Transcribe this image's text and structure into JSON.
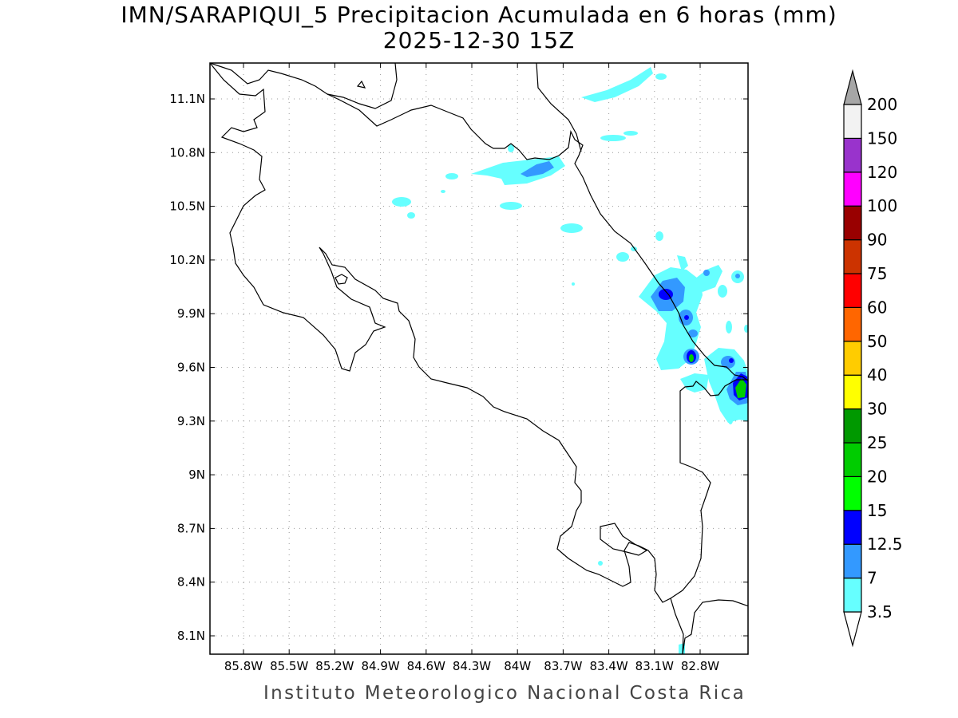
{
  "title": {
    "line1": "IMN/SARAPIQUI_5 Precipitacion Acumulada en 6 horas (mm)",
    "line2": "2025-12-30 15Z"
  },
  "footer": "Instituto Meteorologico Nacional Costa Rica",
  "map": {
    "lat_labels": [
      "11.1N",
      "10.8N",
      "10.5N",
      "10.2N",
      "9.9N",
      "9.6N",
      "9.3N",
      "9N",
      "8.7N",
      "8.4N",
      "8.1N"
    ],
    "lon_labels": [
      "85.8W",
      "85.5W",
      "85.2W",
      "84.9W",
      "84.6W",
      "84.3W",
      "84W",
      "83.7W",
      "83.4W",
      "83.1W",
      "82.8W"
    ],
    "grid": true
  },
  "colorbar": {
    "labels": [
      "3.5",
      "7",
      "12.5",
      "15",
      "20",
      "25",
      "30",
      "40",
      "50",
      "60",
      "75",
      "90",
      "100",
      "120",
      "150",
      "200"
    ],
    "colors": [
      "#66ffff",
      "#3399ff",
      "#0000ff",
      "#00ff00",
      "#00cc00",
      "#009900",
      "#ffff00",
      "#ffcc00",
      "#ff6600",
      "#ff0000",
      "#cc3300",
      "#990000",
      "#ff00ff",
      "#9933cc",
      "#f2f2f2"
    ],
    "over_color": "#a6a6a6",
    "under_color": "#ffffff"
  }
}
